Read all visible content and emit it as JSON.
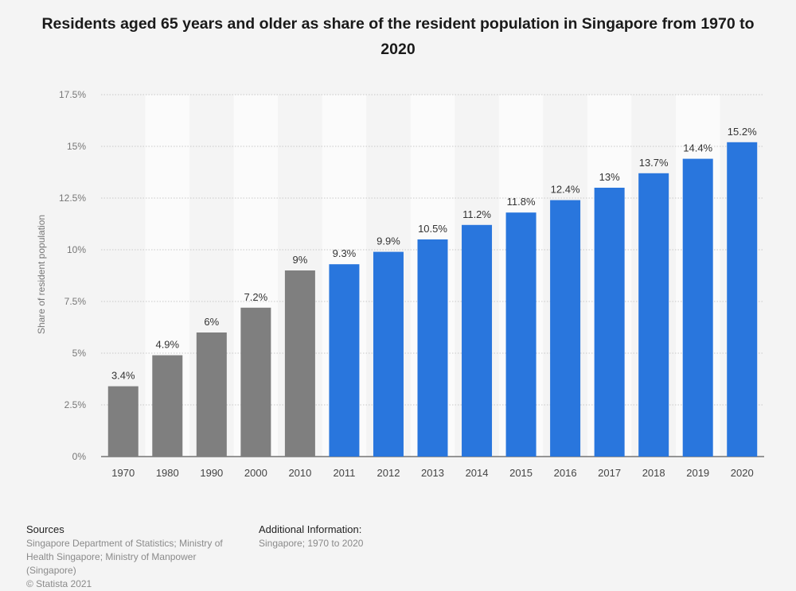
{
  "chart_data": {
    "type": "bar",
    "title": "Residents aged 65 years and older as share of the resident population in Singapore from 1970 to 2020",
    "xlabel": "",
    "ylabel": "Share of resident population",
    "categories": [
      "1970",
      "1980",
      "1990",
      "2000",
      "2010",
      "2011",
      "2012",
      "2013",
      "2014",
      "2015",
      "2016",
      "2017",
      "2018",
      "2019",
      "2020"
    ],
    "values": [
      3.4,
      4.9,
      6,
      7.2,
      9,
      9.3,
      9.9,
      10.5,
      11.2,
      11.8,
      12.4,
      13,
      13.7,
      14.4,
      15.2
    ],
    "data_labels": [
      "3.4%",
      "4.9%",
      "6%",
      "7.2%",
      "9%",
      "9.3%",
      "9.9%",
      "10.5%",
      "11.2%",
      "11.8%",
      "12.4%",
      "13%",
      "13.7%",
      "14.4%",
      "15.2%"
    ],
    "ylim": [
      0,
      17.5
    ],
    "yticks": [
      0,
      2.5,
      5,
      7.5,
      10,
      12.5,
      15,
      17.5
    ],
    "ytick_labels": [
      "0%",
      "2.5%",
      "5%",
      "7.5%",
      "10%",
      "12.5%",
      "15%",
      "17.5%"
    ],
    "grid": true,
    "colors": {
      "decade": "#7f7f7f",
      "annual": "#2976dd",
      "band": "#fbfbfb",
      "grid": "#c8c8c8"
    }
  },
  "footer": {
    "sources_heading": "Sources",
    "sources_lines": [
      "Singapore Department of Statistics; Ministry of",
      "Health Singapore; Ministry of Manpower",
      "(Singapore)",
      "© Statista 2021"
    ],
    "additional_heading": "Additional Information:",
    "additional_lines": [
      "Singapore; 1970 to 2020"
    ]
  }
}
